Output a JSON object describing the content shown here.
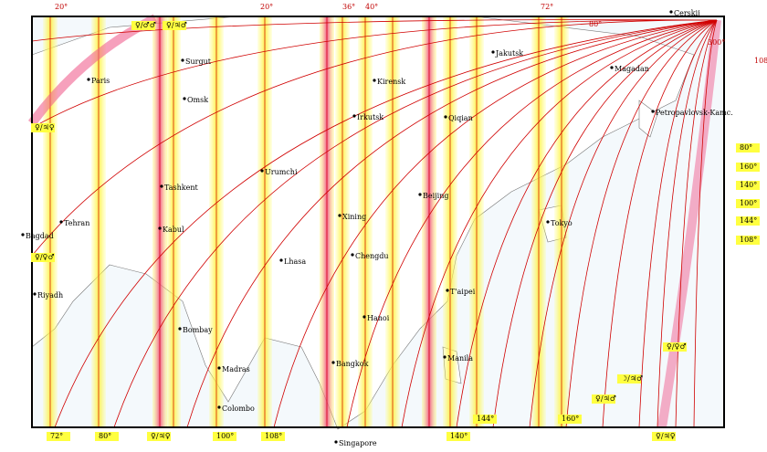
{
  "cities": [
    "Cerskij",
    "Paris",
    "Surgut",
    "Omsk",
    "Jakutsk",
    "Magadan",
    "Kirensk",
    "Irkutsk",
    "Qiqian",
    "Petropavlovsk-Kamc.",
    "Urumchi",
    "Tashkent",
    "Beijing",
    "Tehran",
    "Bagdad",
    "Kabul",
    "Xining",
    "Tokyo",
    "Chengdu",
    "Lhasa",
    "Riyadh",
    "T'aipei",
    "Hanoi",
    "Bombay",
    "Manila",
    "Bangkok",
    "Madras",
    "Colombo",
    "Singapore"
  ],
  "top_labels": [
    "20°",
    "20°",
    "36°",
    "40°",
    "72°",
    "80°",
    "300°",
    "108°"
  ],
  "bottom_labels": [
    "72°",
    "80°",
    "100°",
    "108°",
    "140°",
    "144°",
    "160°"
  ],
  "right_labels": [
    "80°",
    "160°",
    "140°",
    "100°",
    "144°",
    "108°"
  ],
  "glyph_labels": [
    "♀/♂♂",
    "♀/♃♂",
    "♀/♃♀",
    "♀/♀♂",
    "♀/♃♀",
    "♀/♀♂",
    "☽/♃♂",
    "♀/♃♂",
    "♀/♃♀"
  ]
}
